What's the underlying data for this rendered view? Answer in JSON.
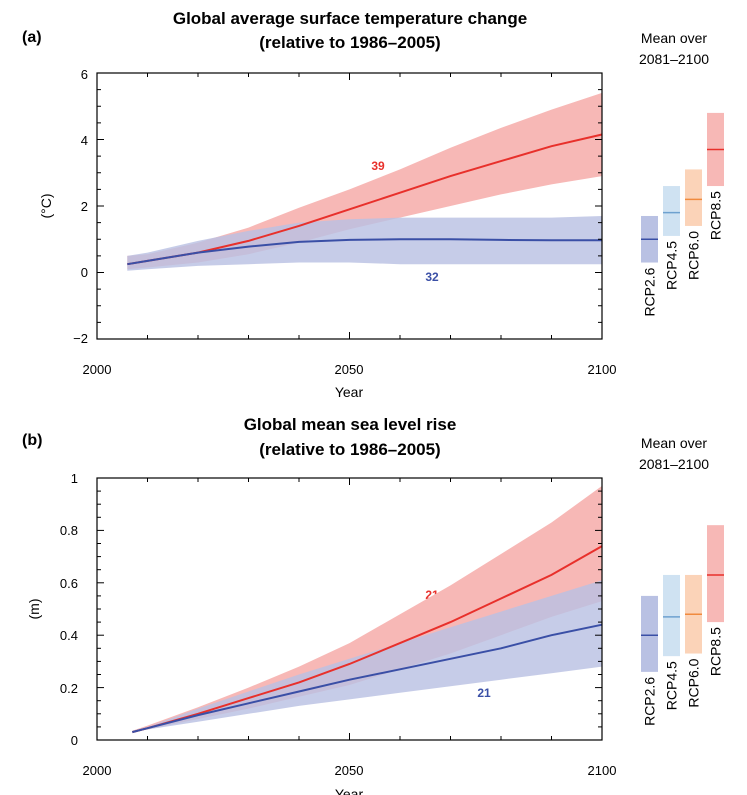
{
  "panels": [
    {
      "panel_label": "(a)",
      "title_line1": "Global average surface temperature change",
      "title_line2": "(relative to 1986–2005)",
      "side_title_line1": "Mean over",
      "side_title_line2": "2081–2100",
      "count_red": "39",
      "count_blue": "32"
    },
    {
      "panel_label": "(b)",
      "title_line1": "Global mean sea level rise",
      "title_line2": "(relative to 1986–2005)",
      "side_title_line1": "Mean over",
      "side_title_line2": "2081–2100",
      "count_red": "21",
      "count_blue": "21"
    }
  ],
  "colors": {
    "rcp26": "#3a4fa6",
    "rcp26_band": "#b9c1e3",
    "rcp45": "#6ea1cf",
    "rcp45_band": "#cfe2f2",
    "rcp60": "#f08a3e",
    "rcp60_band": "#fbd3b8",
    "rcp85": "#e8302b",
    "rcp85_band": "#f7b8b6",
    "overlap_band": "#c9a2b5"
  },
  "chart_data": [
    {
      "type": "line",
      "title": "Global average surface temperature change (relative to 1986–2005)",
      "xlabel": "Year",
      "ylabel": "(°C)",
      "xlim": [
        2000,
        2100
      ],
      "ylim": [
        -2,
        6
      ],
      "x_ticks": [
        "2000",
        "2050",
        "2100"
      ],
      "y_ticks": [
        "−2",
        "0",
        "2",
        "4",
        "6"
      ],
      "x": [
        2006,
        2010,
        2020,
        2030,
        2040,
        2050,
        2060,
        2070,
        2080,
        2090,
        2100
      ],
      "series": [
        {
          "name": "RCP8.5",
          "values": [
            0.25,
            0.35,
            0.6,
            0.95,
            1.4,
            1.9,
            2.4,
            2.9,
            3.35,
            3.8,
            4.15
          ],
          "lower": [
            0.1,
            0.15,
            0.3,
            0.55,
            0.9,
            1.3,
            1.65,
            2.0,
            2.35,
            2.65,
            2.9
          ],
          "upper": [
            0.5,
            0.55,
            0.9,
            1.35,
            1.95,
            2.5,
            3.1,
            3.75,
            4.35,
            4.9,
            5.4
          ]
        },
        {
          "name": "RCP2.6",
          "values": [
            0.25,
            0.35,
            0.6,
            0.78,
            0.92,
            0.98,
            1.0,
            1.0,
            0.98,
            0.97,
            0.97
          ],
          "lower": [
            0.05,
            0.1,
            0.2,
            0.25,
            0.3,
            0.3,
            0.25,
            0.25,
            0.25,
            0.25,
            0.25
          ],
          "upper": [
            0.5,
            0.6,
            0.95,
            1.25,
            1.5,
            1.6,
            1.65,
            1.65,
            1.65,
            1.65,
            1.7
          ]
        }
      ],
      "side_boxes": [
        {
          "name": "RCP2.6",
          "mean": 1.0,
          "low": 0.3,
          "high": 1.7
        },
        {
          "name": "RCP4.5",
          "mean": 1.8,
          "low": 1.1,
          "high": 2.6
        },
        {
          "name": "RCP6.0",
          "mean": 2.2,
          "low": 1.4,
          "high": 3.1
        },
        {
          "name": "RCP8.5",
          "mean": 3.7,
          "low": 2.6,
          "high": 4.8
        }
      ]
    },
    {
      "type": "line",
      "title": "Global mean sea level rise (relative to 1986–2005)",
      "xlabel": "Year",
      "ylabel": "(m)",
      "xlim": [
        2000,
        2100
      ],
      "ylim": [
        0,
        1
      ],
      "x_ticks": [
        "2000",
        "2050",
        "2100"
      ],
      "y_ticks": [
        "0",
        "0.2",
        "0.4",
        "0.6",
        "0.8",
        "1"
      ],
      "x": [
        2007,
        2010,
        2020,
        2030,
        2040,
        2050,
        2060,
        2070,
        2080,
        2090,
        2100
      ],
      "series": [
        {
          "name": "RCP8.5",
          "values": [
            0.03,
            0.045,
            0.1,
            0.16,
            0.22,
            0.29,
            0.37,
            0.45,
            0.54,
            0.63,
            0.74
          ],
          "lower": [
            0.03,
            0.04,
            0.08,
            0.12,
            0.165,
            0.21,
            0.27,
            0.33,
            0.4,
            0.47,
            0.53
          ],
          "upper": [
            0.035,
            0.055,
            0.125,
            0.2,
            0.28,
            0.37,
            0.48,
            0.59,
            0.71,
            0.83,
            0.97
          ]
        },
        {
          "name": "RCP2.6",
          "values": [
            0.03,
            0.045,
            0.095,
            0.14,
            0.185,
            0.23,
            0.27,
            0.31,
            0.35,
            0.4,
            0.44
          ],
          "lower": [
            0.03,
            0.04,
            0.07,
            0.1,
            0.13,
            0.155,
            0.18,
            0.205,
            0.23,
            0.255,
            0.28
          ],
          "upper": [
            0.035,
            0.05,
            0.12,
            0.185,
            0.25,
            0.31,
            0.37,
            0.43,
            0.49,
            0.55,
            0.61
          ]
        }
      ],
      "side_boxes": [
        {
          "name": "RCP2.6",
          "mean": 0.4,
          "low": 0.26,
          "high": 0.55
        },
        {
          "name": "RCP4.5",
          "mean": 0.47,
          "low": 0.32,
          "high": 0.63
        },
        {
          "name": "RCP6.0",
          "mean": 0.48,
          "low": 0.33,
          "high": 0.63
        },
        {
          "name": "RCP8.5",
          "mean": 0.63,
          "low": 0.45,
          "high": 0.82
        }
      ]
    }
  ]
}
